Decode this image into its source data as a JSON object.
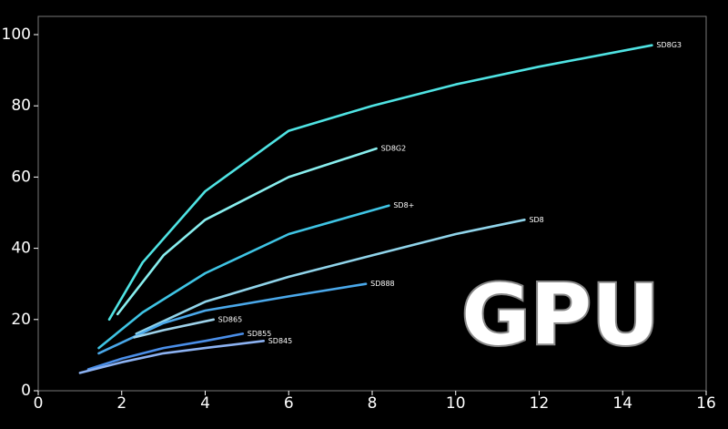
{
  "chart_data": {
    "type": "line",
    "annotation": "GPU",
    "xlim": [
      0,
      16
    ],
    "xticks": [
      0,
      2,
      4,
      6,
      8,
      10,
      12,
      14,
      16
    ],
    "ylim": [
      0,
      100
    ],
    "yticks": [
      0,
      20,
      40,
      60,
      80,
      100
    ],
    "series": [
      {
        "name": "SD8G3",
        "color": "#4fe3e3",
        "x": [
          1.7,
          2.5,
          4,
          6,
          8,
          10,
          12,
          14.7
        ],
        "values": [
          20,
          36,
          56,
          73,
          80,
          86,
          91,
          97
        ]
      },
      {
        "name": "SD8G2",
        "color": "#88eeee",
        "x": [
          1.9,
          3,
          4,
          6,
          8.1
        ],
        "values": [
          21.5,
          38,
          48,
          60,
          68
        ]
      },
      {
        "name": "SD8+",
        "color": "#3fc4e4",
        "x": [
          1.45,
          2.5,
          4,
          6,
          8.4
        ],
        "values": [
          12,
          22,
          33,
          44,
          52
        ]
      },
      {
        "name": "SD8",
        "color": "#90d4ea",
        "x": [
          2.35,
          4,
          6,
          8,
          10,
          11.65
        ],
        "values": [
          16,
          25,
          32,
          38,
          44,
          48
        ]
      },
      {
        "name": "SD888",
        "color": "#4aa8ea",
        "x": [
          1.45,
          3,
          4,
          6,
          7.85
        ],
        "values": [
          10.5,
          19,
          22.5,
          26.5,
          30
        ]
      },
      {
        "name": "SD865",
        "color": "#9ed2ea",
        "x": [
          2.3,
          3,
          4.2
        ],
        "values": [
          15,
          17,
          20
        ]
      },
      {
        "name": "SD855",
        "color": "#4a8ee8",
        "x": [
          1.2,
          2,
          3,
          4,
          4.9
        ],
        "values": [
          6,
          9,
          12,
          14,
          16
        ]
      },
      {
        "name": "SD845",
        "color": "#8cb2f2",
        "x": [
          1.0,
          2,
          3,
          4,
          5.4
        ],
        "values": [
          5,
          8,
          10.5,
          12,
          14
        ]
      }
    ]
  }
}
